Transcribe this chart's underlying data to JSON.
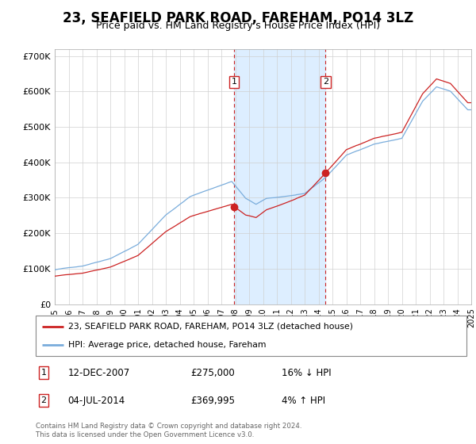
{
  "title": "23, SEAFIELD PARK ROAD, FAREHAM, PO14 3LZ",
  "subtitle": "Price paid vs. HM Land Registry's House Price Index (HPI)",
  "hpi_label": "HPI: Average price, detached house, Fareham",
  "price_label": "23, SEAFIELD PARK ROAD, FAREHAM, PO14 3LZ (detached house)",
  "footer": "Contains HM Land Registry data © Crown copyright and database right 2024.\nThis data is licensed under the Open Government Licence v3.0.",
  "transaction1_date": "12-DEC-2007",
  "transaction1_price": "£275,000",
  "transaction1_pct": "16% ↓ HPI",
  "transaction2_date": "04-JUL-2014",
  "transaction2_price": "£369,995",
  "transaction2_pct": "4% ↑ HPI",
  "transaction1_x": 2007.917,
  "transaction2_x": 2014.5,
  "transaction1_y": 275000,
  "transaction2_y": 369995,
  "ylim": [
    0,
    720000
  ],
  "xlim_start": 1995,
  "xlim_end": 2025,
  "yticks": [
    0,
    100000,
    200000,
    300000,
    400000,
    500000,
    600000,
    700000
  ],
  "hpi_color": "#7aaddc",
  "price_color": "#cc2222",
  "bg_color": "#ffffff",
  "grid_color": "#d0d0d0",
  "shade_color": "#ddeeff",
  "title_fontsize": 12,
  "subtitle_fontsize": 9
}
